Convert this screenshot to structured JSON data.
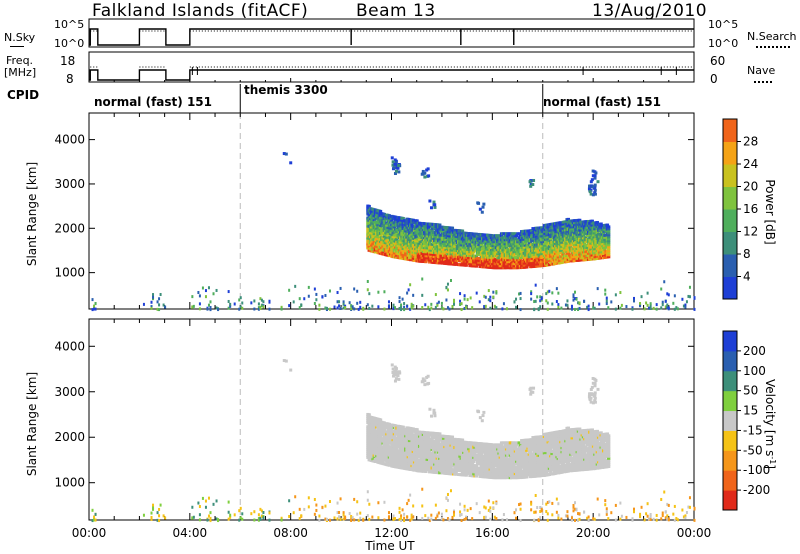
{
  "header": {
    "site": "Falkland Islands (fitACF)",
    "beam": "Beam 13",
    "date": "13/Aug/2010"
  },
  "side_labels": {
    "nsky": "N.Sky",
    "freq_line1": "Freq.",
    "freq_line2": "[MHz]",
    "cpid": "CPID",
    "nsearch": "N.Search",
    "nave": "Nave"
  },
  "side_ticks": {
    "nsky_top": "10^5",
    "nsky_bottom": "10^0",
    "freq_top": "18",
    "freq_bottom": "8",
    "nsearch_top": "10^5",
    "nsearch_bottom": "10^0",
    "nave_top": "60",
    "nave_bottom": "0"
  },
  "cpid_segments": [
    {
      "label": "normal (fast) 151",
      "start_hour": 0
    },
    {
      "label": "themis 3300",
      "start_hour": 6
    },
    {
      "label": "normal (fast) 151",
      "start_hour": 18
    }
  ],
  "chart_data": [
    {
      "type": "heatmap",
      "panel": "power",
      "xlabel": "",
      "ylabel": "Slant Range [km]",
      "xlim": [
        0,
        24
      ],
      "ylim": [
        180,
        4600
      ],
      "yticks": [
        1000,
        2000,
        3000,
        4000
      ],
      "colorbar": {
        "label": "Power [dB]",
        "ticks": [
          4,
          8,
          12,
          16,
          20,
          24,
          28
        ],
        "range": [
          0,
          32
        ],
        "colors": [
          "#1e3fd6",
          "#2a5fb0",
          "#3d8f7a",
          "#4fae5c",
          "#7fc33e",
          "#c9c21f",
          "#f5a316",
          "#f0641a",
          "#e02a1a"
        ]
      },
      "echo_band": [
        {
          "hour": 11.0,
          "range_min": 1500,
          "range_max": 2500
        },
        {
          "hour": 12.0,
          "range_min": 1350,
          "range_max": 2250
        },
        {
          "hour": 13.0,
          "range_min": 1250,
          "range_max": 2150
        },
        {
          "hour": 14.0,
          "range_min": 1200,
          "range_max": 2050
        },
        {
          "hour": 15.0,
          "range_min": 1150,
          "range_max": 1900
        },
        {
          "hour": 16.0,
          "range_min": 1100,
          "range_max": 1850
        },
        {
          "hour": 17.0,
          "range_min": 1100,
          "range_max": 1900
        },
        {
          "hour": 18.0,
          "range_min": 1150,
          "range_max": 2050
        },
        {
          "hour": 19.0,
          "range_min": 1250,
          "range_max": 2200
        },
        {
          "hour": 20.0,
          "range_min": 1300,
          "range_max": 2150
        },
        {
          "hour": 20.6,
          "range_min": 1350,
          "range_max": 2050
        }
      ]
    },
    {
      "type": "heatmap",
      "panel": "velocity",
      "xlabel": "Time UT",
      "ylabel": "Slant Range [km]",
      "xlim": [
        0,
        24
      ],
      "ylim": [
        180,
        4600
      ],
      "xticks": [
        "00:00",
        "04:00",
        "08:00",
        "12:00",
        "16:00",
        "20:00",
        "00:00"
      ],
      "yticks": [
        1000,
        2000,
        3000,
        4000
      ],
      "colorbar": {
        "label": "Velocity [m s-1]",
        "ticks": [
          200,
          100,
          50,
          15,
          -15,
          -50,
          -100,
          -200
        ],
        "colors": [
          "#1e3fd6",
          "#2a5fb0",
          "#3d8f7a",
          "#7fcf3e",
          "#c8c8c8",
          "#f5c316",
          "#f5961a",
          "#f0641a",
          "#e02a1a"
        ]
      }
    }
  ]
}
